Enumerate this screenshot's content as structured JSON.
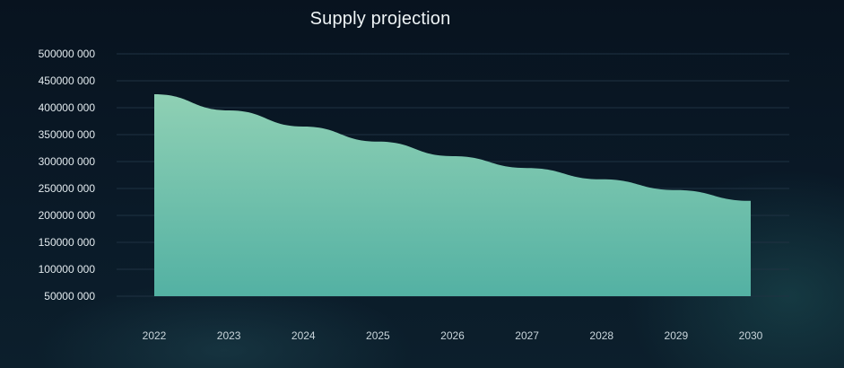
{
  "chart_data": {
    "type": "area",
    "title": "Supply projection",
    "xlabel": "",
    "ylabel": "",
    "categories": [
      "2022",
      "2023",
      "2024",
      "2025",
      "2026",
      "2027",
      "2028",
      "2029",
      "2030"
    ],
    "series": [
      {
        "values": [
          425000000,
          395000000,
          365000000,
          337000000,
          310000000,
          288000000,
          267000000,
          247000000,
          227000000
        ]
      }
    ],
    "ylim": [
      50000000,
      500000000
    ],
    "yticks": [
      50000000,
      100000000,
      150000000,
      200000000,
      250000000,
      300000000,
      350000000,
      400000000,
      450000000,
      500000000
    ],
    "ytick_labels": [
      "50000 000",
      "100000 000",
      "150000 000",
      "200000 000",
      "250000 000",
      "300000 000",
      "350000 000",
      "400000 000",
      "450000 000",
      "500000 000"
    ],
    "grid": true,
    "legend": "none",
    "colors": {
      "background": "#081522",
      "area_top": "#8fd0b4",
      "area_bottom": "#53b1a3",
      "grid": "#1f3242",
      "text": "#e2eaee"
    }
  }
}
